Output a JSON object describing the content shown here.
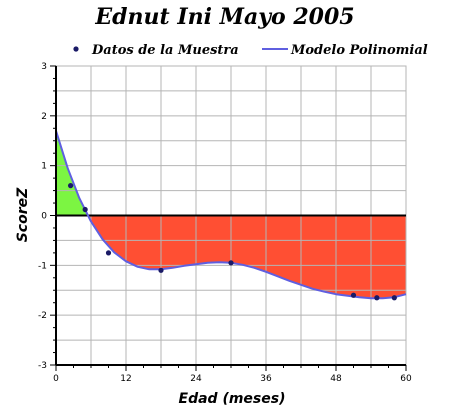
{
  "chart_data": {
    "type": "line",
    "title": "Ednut Ini Mayo 2005",
    "xlabel": "Edad (meses)",
    "ylabel": "ScoreZ",
    "xlim": [
      0,
      60
    ],
    "ylim": [
      -3,
      3
    ],
    "x_ticks": [
      0,
      12,
      24,
      36,
      48,
      60
    ],
    "y_ticks": [
      -3,
      -2,
      -1,
      0,
      1,
      2,
      3
    ],
    "grid": true,
    "legend_position": "top",
    "series": [
      {
        "name": "Datos de la Muestra",
        "kind": "scatter",
        "color": "#1a1a66",
        "x": [
          2.5,
          5,
          9,
          18,
          30,
          51,
          55,
          58
        ],
        "y": [
          0.6,
          0.12,
          -0.75,
          -1.1,
          -0.95,
          -1.6,
          -1.65,
          -1.65
        ]
      },
      {
        "name": "Modelo Polinomial",
        "kind": "line",
        "color": "#5f5fe0",
        "x": [
          0,
          2,
          4,
          6,
          8,
          10,
          12,
          14,
          16,
          18,
          20,
          22,
          24,
          26,
          28,
          30,
          32,
          34,
          36,
          38,
          40,
          42,
          44,
          46,
          48,
          50,
          52,
          54,
          56,
          58,
          60
        ],
        "y": [
          1.7,
          0.95,
          0.35,
          -0.12,
          -0.48,
          -0.74,
          -0.92,
          -1.03,
          -1.08,
          -1.08,
          -1.05,
          -1.01,
          -0.98,
          -0.95,
          -0.94,
          -0.95,
          -0.99,
          -1.05,
          -1.13,
          -1.22,
          -1.31,
          -1.39,
          -1.47,
          -1.53,
          -1.58,
          -1.61,
          -1.64,
          -1.66,
          -1.66,
          -1.64,
          -1.58
        ]
      }
    ],
    "fill_colors": {
      "above_zero": "#7cf542",
      "below_zero": "#ff4f33"
    }
  }
}
